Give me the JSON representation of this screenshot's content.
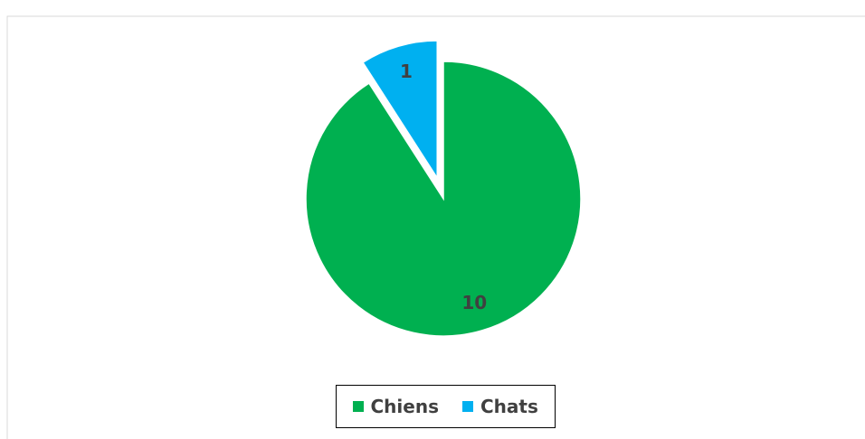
{
  "chart_data": {
    "type": "pie",
    "categories": [
      "Chiens",
      "Chats"
    ],
    "values": [
      10,
      1
    ],
    "colors": [
      "#00b050",
      "#00b0f0"
    ],
    "legend": "bottom"
  }
}
